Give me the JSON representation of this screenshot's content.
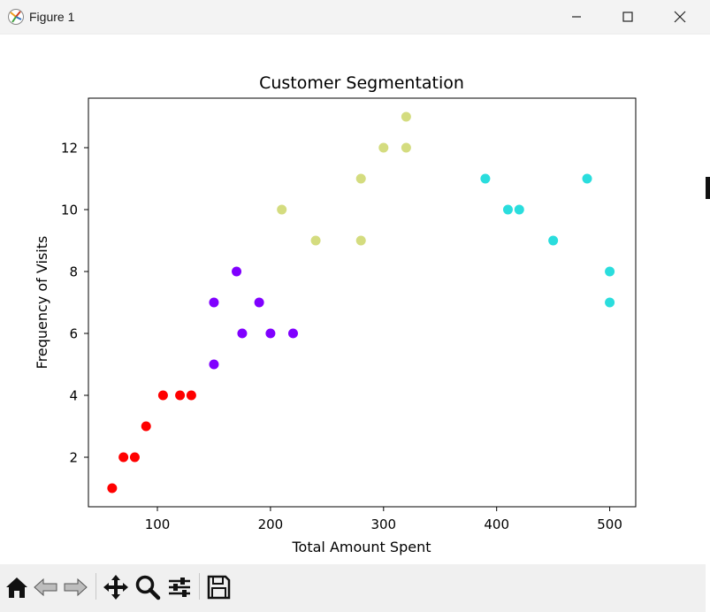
{
  "window": {
    "title": "Figure 1",
    "controls": {
      "minimize": "minimize",
      "maximize": "maximize",
      "close": "close"
    }
  },
  "toolbar": {
    "buttons": [
      {
        "id": "home",
        "icon": "home-icon"
      },
      {
        "id": "back",
        "icon": "back-arrow-icon"
      },
      {
        "id": "forward",
        "icon": "forward-arrow-icon"
      },
      {
        "id": "pan",
        "icon": "move-icon"
      },
      {
        "id": "zoom",
        "icon": "zoom-icon"
      },
      {
        "id": "configure",
        "icon": "sliders-icon"
      },
      {
        "id": "save",
        "icon": "save-icon"
      }
    ]
  },
  "chart_data": {
    "type": "scatter",
    "title": "Customer Segmentation",
    "xlabel": "Total Amount Spent",
    "ylabel": "Frequency of Visits",
    "xlim": [
      39,
      523
    ],
    "ylim": [
      0.4,
      13.6
    ],
    "xticks": [
      100,
      200,
      300,
      400,
      500
    ],
    "yticks": [
      2,
      4,
      6,
      8,
      10,
      12
    ],
    "grid": false,
    "legend": "none",
    "series": [
      {
        "color": "#ff0000",
        "points": [
          [
            60,
            1
          ],
          [
            70,
            2
          ],
          [
            80,
            2
          ],
          [
            90,
            3
          ],
          [
            105,
            4
          ],
          [
            120,
            4
          ],
          [
            130,
            4
          ]
        ]
      },
      {
        "color": "#8000ff",
        "points": [
          [
            150,
            5
          ],
          [
            150,
            7
          ],
          [
            170,
            8
          ],
          [
            175,
            6
          ],
          [
            190,
            7
          ],
          [
            200,
            6
          ],
          [
            220,
            6
          ]
        ]
      },
      {
        "color": "#d4dc7f",
        "points": [
          [
            210,
            10
          ],
          [
            240,
            9
          ],
          [
            280,
            11
          ],
          [
            280,
            9
          ],
          [
            300,
            12
          ],
          [
            320,
            13
          ],
          [
            320,
            12
          ]
        ]
      },
      {
        "color": "#2adddd",
        "points": [
          [
            390,
            11
          ],
          [
            410,
            10
          ],
          [
            420,
            10
          ],
          [
            450,
            9
          ],
          [
            480,
            11
          ],
          [
            500,
            8
          ],
          [
            500,
            7
          ]
        ]
      }
    ]
  }
}
